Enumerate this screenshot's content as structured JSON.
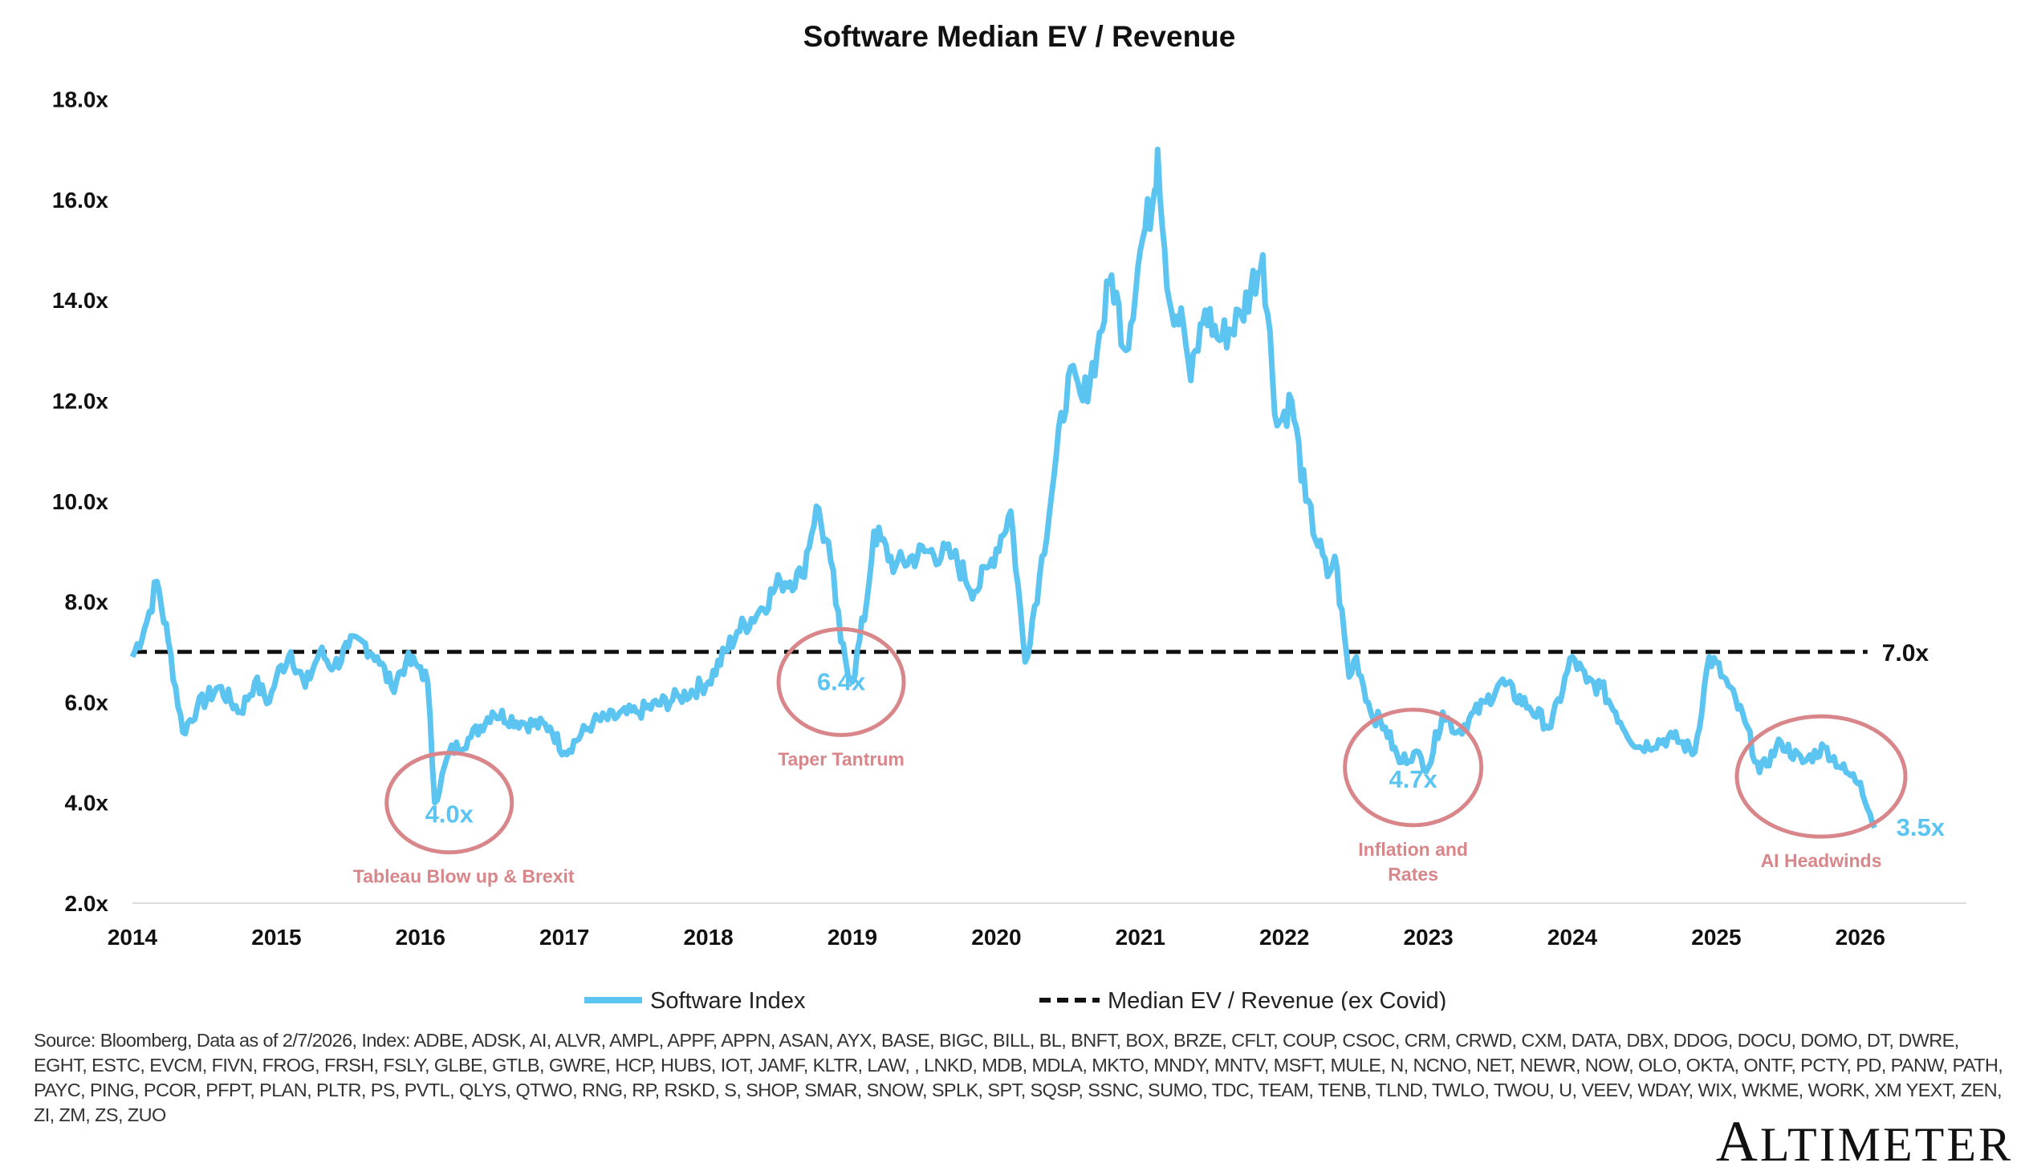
{
  "chart_data": {
    "type": "line",
    "title": "Software Median EV / Revenue",
    "xlabel": "",
    "ylabel": "",
    "xlim": [
      2014,
      2026.9
    ],
    "ylim": [
      2.0,
      18.0
    ],
    "x_ticks": [
      "2014",
      "2015",
      "2016",
      "2017",
      "2018",
      "2019",
      "2020",
      "2021",
      "2022",
      "2023",
      "2024",
      "2025",
      "2026"
    ],
    "y_ticks": [
      "2.0x",
      "4.0x",
      "6.0x",
      "8.0x",
      "10.0x",
      "12.0x",
      "14.0x",
      "16.0x",
      "18.0x"
    ],
    "grid": false,
    "legend_position": "bottom",
    "series": [
      {
        "name": "Software Index",
        "color": "#5bc4f1",
        "x": [
          2014.0,
          2014.1,
          2014.17,
          2014.25,
          2014.35,
          2014.45,
          2014.6,
          2014.75,
          2014.85,
          2014.95,
          2015.0,
          2015.1,
          2015.2,
          2015.3,
          2015.4,
          2015.5,
          2015.6,
          2015.7,
          2015.8,
          2015.9,
          2016.0,
          2016.05,
          2016.1,
          2016.2,
          2016.35,
          2016.5,
          2016.7,
          2016.9,
          2017.0,
          2017.2,
          2017.5,
          2017.8,
          2018.0,
          2018.2,
          2018.35,
          2018.5,
          2018.65,
          2018.75,
          2018.85,
          2018.92,
          2019.0,
          2019.1,
          2019.15,
          2019.3,
          2019.5,
          2019.7,
          2019.85,
          2019.95,
          2020.1,
          2020.2,
          2020.3,
          2020.4,
          2020.5,
          2020.6,
          2020.7,
          2020.8,
          2020.9,
          2021.0,
          2021.1,
          2021.12,
          2021.2,
          2021.3,
          2021.35,
          2021.45,
          2021.55,
          2021.7,
          2021.85,
          2021.95,
          2022.05,
          2022.15,
          2022.3,
          2022.35,
          2022.45,
          2022.5,
          2022.6,
          2022.7,
          2022.8,
          2022.9,
          2023.0,
          2023.1,
          2023.2,
          2023.4,
          2023.5,
          2023.7,
          2023.85,
          2024.0,
          2024.1,
          2024.2,
          2024.3,
          2024.45,
          2024.7,
          2024.85,
          2024.95,
          2025.05,
          2025.2,
          2025.3,
          2025.45,
          2025.6,
          2025.75,
          2025.9,
          2026.0,
          2026.1
        ],
        "values": [
          6.9,
          7.6,
          8.4,
          7.2,
          5.4,
          5.9,
          6.3,
          5.8,
          6.4,
          6.0,
          6.5,
          7.0,
          6.3,
          7.0,
          6.7,
          7.1,
          7.2,
          6.9,
          6.3,
          6.8,
          6.7,
          6.4,
          4.0,
          5.0,
          5.3,
          5.8,
          5.6,
          5.5,
          5.0,
          5.6,
          5.8,
          6.1,
          6.4,
          7.4,
          7.8,
          8.4,
          8.5,
          9.9,
          8.8,
          7.2,
          6.4,
          8.0,
          9.4,
          8.7,
          9.0,
          8.9,
          8.2,
          8.7,
          9.8,
          6.8,
          8.5,
          10.5,
          12.5,
          12.0,
          13.0,
          14.5,
          13.0,
          15.0,
          16.2,
          17.0,
          14.0,
          13.5,
          12.4,
          13.8,
          13.2,
          13.7,
          14.9,
          11.5,
          12.0,
          10.0,
          8.5,
          8.9,
          6.5,
          6.9,
          5.8,
          5.5,
          4.8,
          5.0,
          4.7,
          5.8,
          5.4,
          6.0,
          6.4,
          5.9,
          5.5,
          6.9,
          6.4,
          6.3,
          5.8,
          5.1,
          5.3,
          5.0,
          6.9,
          6.5,
          5.6,
          4.6,
          5.2,
          4.8,
          5.1,
          4.6,
          4.4,
          3.5
        ]
      },
      {
        "name": "Median EV / Revenue (ex Covid)",
        "color": "#000000",
        "dashed": true,
        "constant": 7.0,
        "label": "7.0x"
      }
    ],
    "annotations": [
      {
        "value_label": "4.0x",
        "caption": "Tableau Blow up & Brexit",
        "x": 2016.1,
        "y": 4.0
      },
      {
        "value_label": "6.4x",
        "caption": "Taper Tantrum",
        "x": 2018.95,
        "y": 6.4
      },
      {
        "value_label": "4.7x",
        "caption": "Inflation and Rates",
        "x": 2022.95,
        "y": 4.7
      },
      {
        "value_label": "",
        "caption": "AI Headwinds",
        "x": 2025.7,
        "y": 4.6
      }
    ],
    "end_label": "3.5x",
    "accent_color": "#5bc4f1",
    "annotation_color": "#d9868a"
  },
  "source": "Source: Bloomberg, Data as of 2/7/2026, Index: ADBE, ADSK, AI, ALVR, AMPL, APPF, APPN, ASAN, AYX, BASE, BIGC, BILL, BL, BNFT, BOX,  BRZE, CFLT, COUP, CSOC, CRM, CRWD, CXM, DATA, DBX, DDOG, DOCU, DOMO, DT, DWRE, EGHT, ESTC, EVCM, FIVN, FROG, FRSH, FSLY, GLBE, GTLB, GWRE, HCP, HUBS, IOT, JAMF, KLTR, LAW, , LNKD, MDB, MDLA, MKTO, MNDY, MNTV, MSFT, MULE, N, NCNO, NET, NEWR, NOW, OLO, OKTA, ONTF, PCTY, PD, PANW, PATH, PAYC, PING, PCOR, PFPT, PLAN, PLTR, PS, PVTL, QLYS, QTWO, RNG, RP, RSKD, S, SHOP, SMAR, SNOW, SPLK, SPT, SQSP, SSNC, SUMO, TDC, TEAM, TENB, TLND, TWLO, TWOU, U, VEEV, WDAY, WIX, WKME, WORK, XM YEXT, ZEN, ZI, ZM, ZS, ZUO",
  "logo": "ALTIMETER"
}
